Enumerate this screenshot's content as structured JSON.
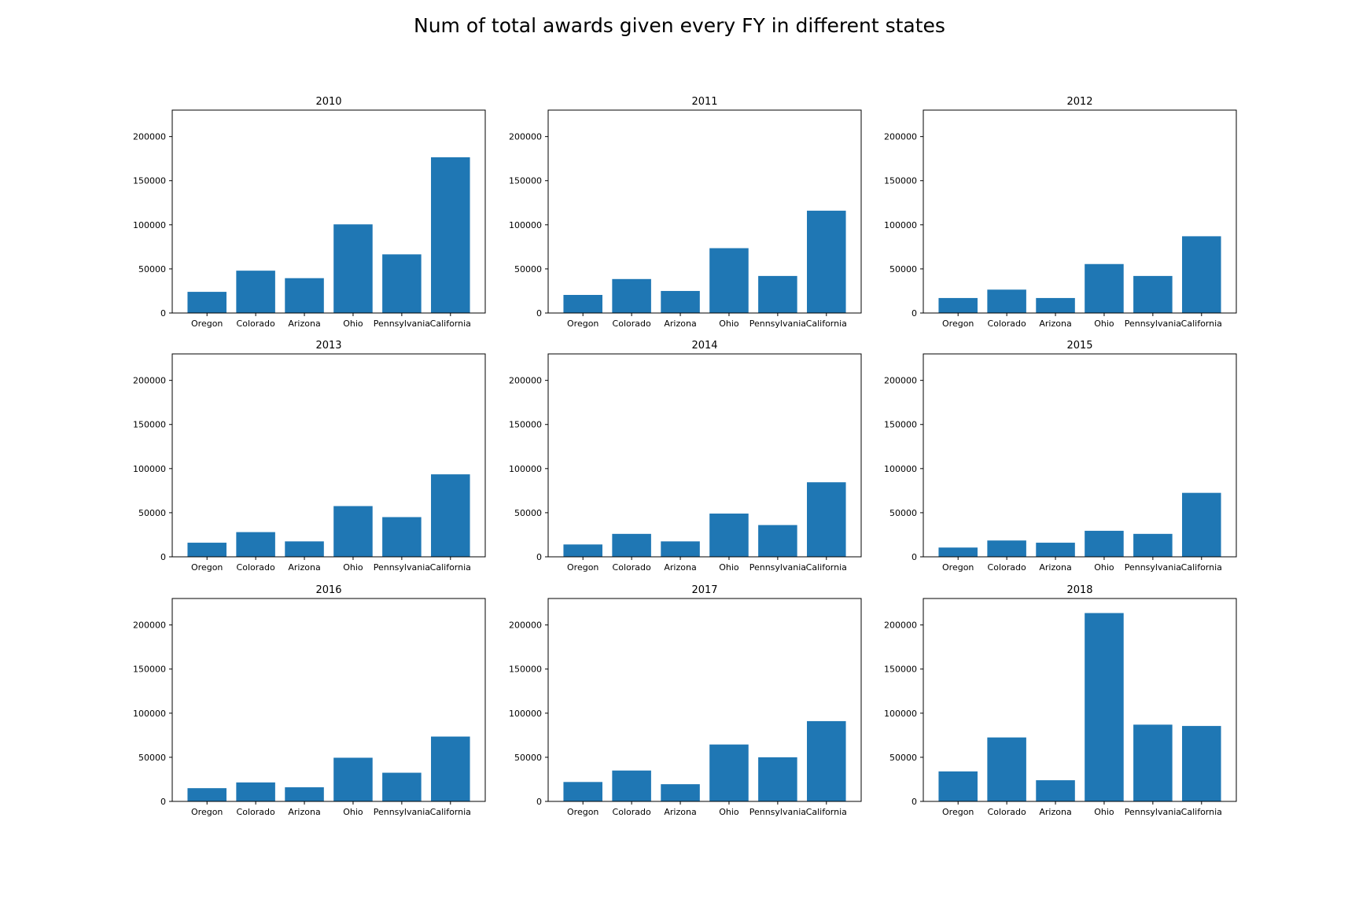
{
  "title": "Num of total awards given every FY in different states",
  "chart_data": [
    {
      "type": "bar",
      "title": "2010",
      "categories": [
        "Oregon",
        "Colorado",
        "Arizona",
        "Ohio",
        "Pennsylvania",
        "California"
      ],
      "values": [
        24000,
        48000,
        39500,
        100500,
        66500,
        176500
      ],
      "ylim": [
        0,
        230000
      ],
      "yticks": [
        0,
        50000,
        100000,
        150000,
        200000
      ],
      "grid": false
    },
    {
      "type": "bar",
      "title": "2011",
      "categories": [
        "Oregon",
        "Colorado",
        "Arizona",
        "Ohio",
        "Pennsylvania",
        "California"
      ],
      "values": [
        20500,
        38500,
        25000,
        73500,
        42000,
        116000
      ],
      "ylim": [
        0,
        230000
      ],
      "yticks": [
        0,
        50000,
        100000,
        150000,
        200000
      ],
      "grid": false
    },
    {
      "type": "bar",
      "title": "2012",
      "categories": [
        "Oregon",
        "Colorado",
        "Arizona",
        "Ohio",
        "Pennsylvania",
        "California"
      ],
      "values": [
        17000,
        26500,
        17000,
        55500,
        42000,
        87000
      ],
      "ylim": [
        0,
        230000
      ],
      "yticks": [
        0,
        50000,
        100000,
        150000,
        200000
      ],
      "grid": false
    },
    {
      "type": "bar",
      "title": "2013",
      "categories": [
        "Oregon",
        "Colorado",
        "Arizona",
        "Ohio",
        "Pennsylvania",
        "California"
      ],
      "values": [
        16000,
        28000,
        17500,
        57500,
        45000,
        93500
      ],
      "ylim": [
        0,
        230000
      ],
      "yticks": [
        0,
        50000,
        100000,
        150000,
        200000
      ],
      "grid": false
    },
    {
      "type": "bar",
      "title": "2014",
      "categories": [
        "Oregon",
        "Colorado",
        "Arizona",
        "Ohio",
        "Pennsylvania",
        "California"
      ],
      "values": [
        14000,
        26000,
        17500,
        49000,
        36000,
        84500
      ],
      "ylim": [
        0,
        230000
      ],
      "yticks": [
        0,
        50000,
        100000,
        150000,
        200000
      ],
      "grid": false
    },
    {
      "type": "bar",
      "title": "2015",
      "categories": [
        "Oregon",
        "Colorado",
        "Arizona",
        "Ohio",
        "Pennsylvania",
        "California"
      ],
      "values": [
        10500,
        18500,
        16000,
        29500,
        26000,
        72500
      ],
      "ylim": [
        0,
        230000
      ],
      "yticks": [
        0,
        50000,
        100000,
        150000,
        200000
      ],
      "grid": false
    },
    {
      "type": "bar",
      "title": "2016",
      "categories": [
        "Oregon",
        "Colorado",
        "Arizona",
        "Ohio",
        "Pennsylvania",
        "California"
      ],
      "values": [
        15000,
        21500,
        16000,
        49500,
        32500,
        73500
      ],
      "ylim": [
        0,
        230000
      ],
      "yticks": [
        0,
        50000,
        100000,
        150000,
        200000
      ],
      "grid": false
    },
    {
      "type": "bar",
      "title": "2017",
      "categories": [
        "Oregon",
        "Colorado",
        "Arizona",
        "Ohio",
        "Pennsylvania",
        "California"
      ],
      "values": [
        22000,
        35000,
        19500,
        64500,
        50000,
        91000
      ],
      "ylim": [
        0,
        230000
      ],
      "yticks": [
        0,
        50000,
        100000,
        150000,
        200000
      ],
      "grid": false
    },
    {
      "type": "bar",
      "title": "2018",
      "categories": [
        "Oregon",
        "Colorado",
        "Arizona",
        "Ohio",
        "Pennsylvania",
        "California"
      ],
      "values": [
        34000,
        72500,
        24000,
        213500,
        87000,
        85500
      ],
      "ylim": [
        0,
        230000
      ],
      "yticks": [
        0,
        50000,
        100000,
        150000,
        200000
      ],
      "grid": false
    }
  ],
  "colors": {
    "bar": "#1f77b4",
    "axes": "#000000",
    "background": "#ffffff"
  }
}
